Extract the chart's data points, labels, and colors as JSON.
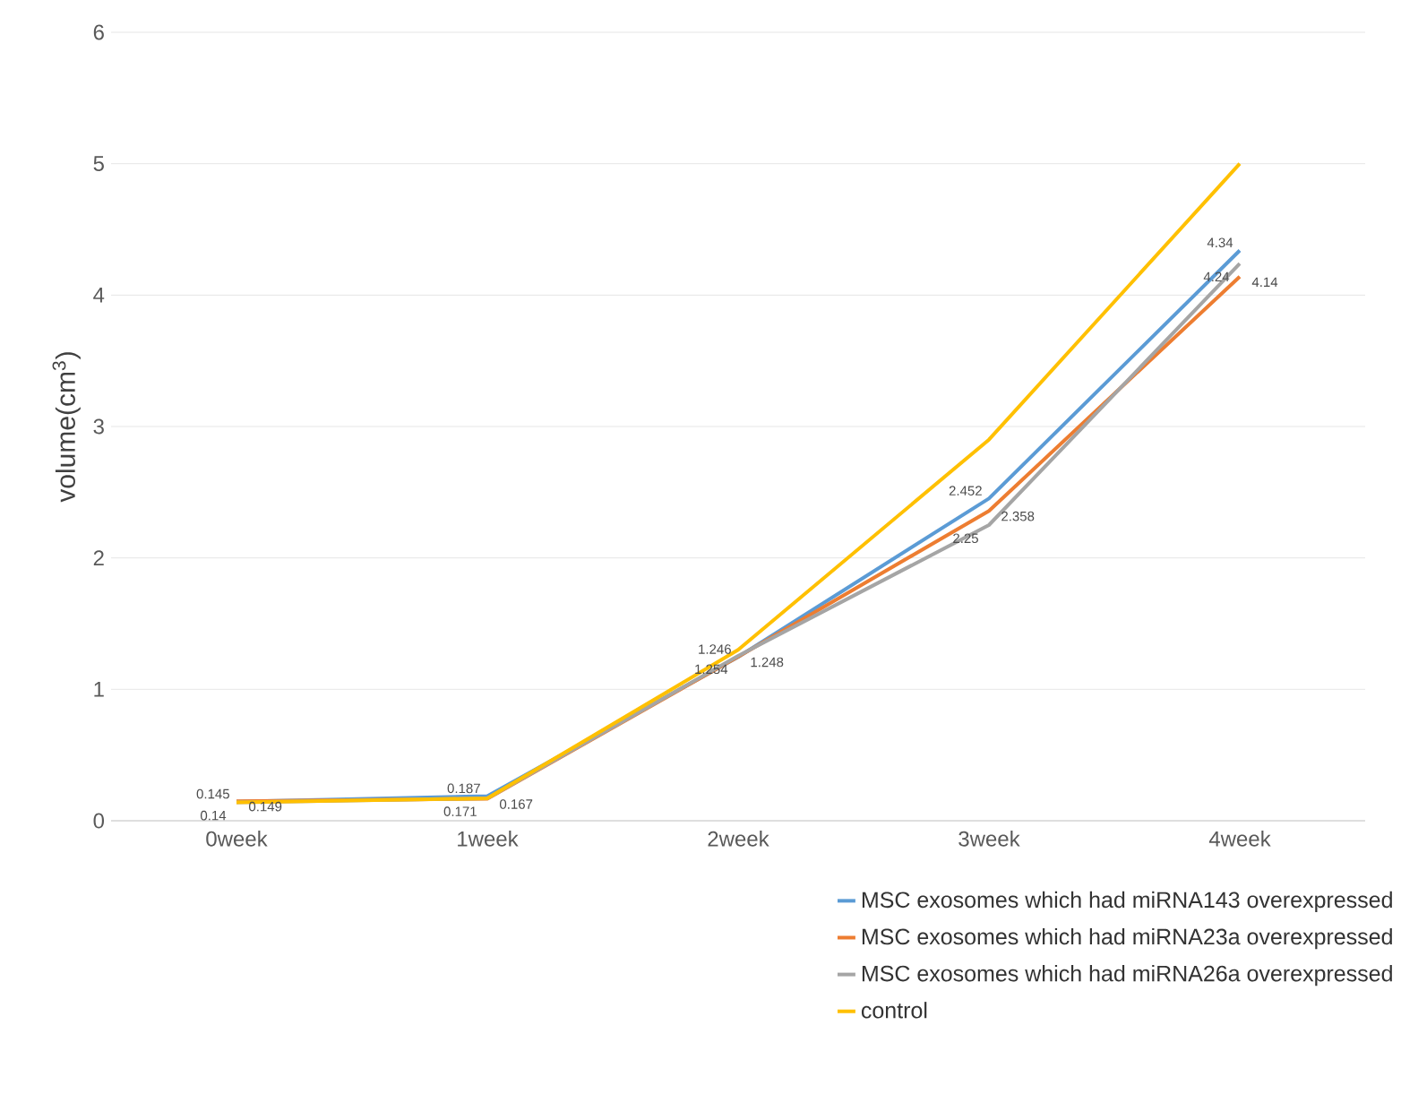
{
  "chart_data": {
    "type": "line",
    "ylabel": "volume(cm$^{3}$)",
    "categories": [
      "0week",
      "1week",
      "2week",
      "3week",
      "4week"
    ],
    "series": [
      {
        "name": "MSC exosomes which had miRNA143 overexpressed",
        "color": "#5b9bd5",
        "values": [
          0.145,
          0.187,
          1.246,
          2.452,
          4.34
        ],
        "value_labels": [
          "0.145",
          "0.187",
          "1.246",
          "2.452",
          "4.34"
        ]
      },
      {
        "name": "MSC exosomes which had miRNA23a overexpressed",
        "color": "#ed7d31",
        "values": [
          0.149,
          0.167,
          1.248,
          2.358,
          4.14
        ],
        "value_labels": [
          "0.149",
          "0.167",
          "1.248",
          "2.358",
          "4.14"
        ]
      },
      {
        "name": "MSC exosomes which had miRNA26a overexpressed",
        "color": "#a5a5a5",
        "values": [
          0.14,
          0.171,
          1.254,
          2.25,
          4.24
        ],
        "value_labels": [
          "0.14",
          "0.171",
          "1.254",
          "2.25",
          "4.24"
        ]
      },
      {
        "name": "control",
        "color": "#ffc000",
        "values": [
          0.14,
          0.17,
          1.3,
          2.9,
          5.0
        ]
      }
    ],
    "ylim": [
      0,
      6
    ],
    "yticks": [
      0,
      1,
      2,
      3,
      4,
      5,
      6
    ],
    "grid": "y",
    "legend": "bottom right",
    "marker": "none",
    "line_style": "solid"
  }
}
